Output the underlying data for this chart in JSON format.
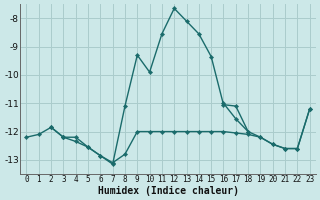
{
  "xlabel": "Humidex (Indice chaleur)",
  "background_color": "#cce8e8",
  "grid_color": "#aacccc",
  "line_color": "#1a6b6b",
  "xlim": [
    -0.5,
    23.5
  ],
  "ylim": [
    -13.5,
    -7.5
  ],
  "yticks": [
    -13,
    -12,
    -11,
    -10,
    -9,
    -8
  ],
  "xticks": [
    0,
    1,
    2,
    3,
    4,
    5,
    6,
    7,
    8,
    9,
    10,
    11,
    12,
    13,
    14,
    15,
    16,
    17,
    18,
    19,
    20,
    21,
    22,
    23
  ],
  "series": [
    [
      0,
      -12.2,
      1,
      -12.1,
      2,
      -11.85,
      3,
      -12.2
    ],
    [
      2,
      -11.85,
      3,
      -12.2,
      4,
      -12.35,
      5,
      -12.55,
      6,
      -12.85,
      7,
      -13.1,
      8,
      -12.8,
      9,
      -12.0,
      10,
      -12.0,
      11,
      -12.0,
      12,
      -12.0,
      13,
      -12.0,
      14,
      -12.0,
      15,
      -12.0,
      16,
      -12.0,
      17,
      -12.05,
      18,
      -12.1,
      19,
      -12.2,
      20,
      -12.45,
      21,
      -12.6,
      22,
      -12.6,
      23,
      -11.2
    ],
    [
      3,
      -12.2,
      4,
      -12.2,
      5,
      -12.55,
      6,
      -12.85,
      7,
      -13.15,
      8,
      -11.1,
      9,
      -9.3,
      10,
      -9.9,
      11,
      -8.55,
      12,
      -7.65,
      13,
      -8.1,
      14,
      -8.55,
      15,
      -9.35,
      16,
      -11.05,
      17,
      -11.1,
      18,
      -12.0
    ],
    [
      16,
      -11.0,
      17,
      -11.55,
      18,
      -12.0,
      19,
      -12.2,
      20,
      -12.45,
      21,
      -12.6,
      22,
      -12.6,
      23,
      -11.2
    ]
  ]
}
